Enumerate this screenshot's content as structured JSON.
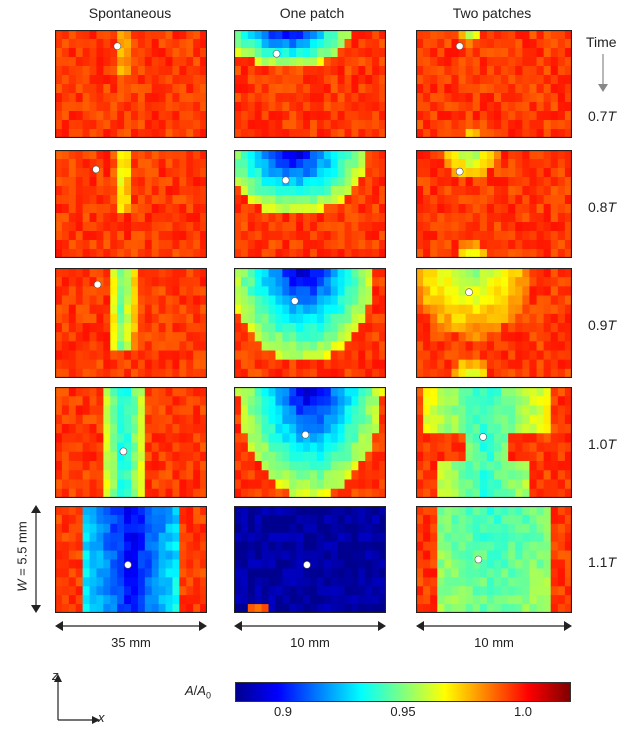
{
  "figure": {
    "columns": [
      "Spontaneous",
      "One patch",
      "Two patches"
    ],
    "time_header": "Time",
    "times": [
      {
        "prefix": "0.7",
        "unit": "T"
      },
      {
        "prefix": "0.8",
        "unit": "T"
      },
      {
        "prefix": "0.9",
        "unit": "T"
      },
      {
        "prefix": "1.0",
        "unit": "T"
      },
      {
        "prefix": "1.1",
        "unit": "T"
      }
    ],
    "width_labels": [
      "35 mm",
      "10 mm",
      "10 mm"
    ],
    "height_label_var": "W",
    "height_label_val": "= 5.5 mm",
    "axes": {
      "z": "z",
      "x": "x"
    },
    "colorbar": {
      "label_num": "A",
      "label_den": "A",
      "label_den_sub": "0",
      "ticks": [
        "0.9",
        "0.95",
        "1.0"
      ],
      "tick_values": [
        0.9,
        0.95,
        1.0
      ],
      "range": [
        0.88,
        1.02
      ],
      "colors": [
        "#00008f",
        "#0000ff",
        "#0080ff",
        "#00ffff",
        "#80ff80",
        "#ffff00",
        "#ff8000",
        "#ff0000",
        "#800000"
      ]
    }
  }
}
